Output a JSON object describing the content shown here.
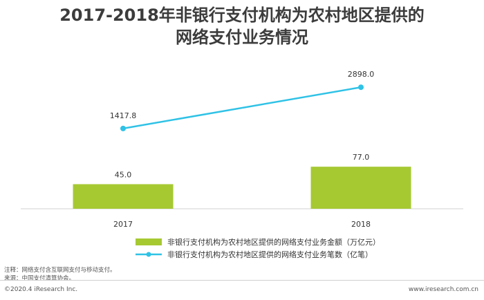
{
  "title_line1": "2017-2018年非银行支付机构为农村地区提供的",
  "title_line2": "网络支付业务情况",
  "chart_data": {
    "type": "bar",
    "categories": [
      "2017",
      "2018"
    ],
    "series": [
      {
        "name": "非银行支付机构为农村地区提供的网络支付业务金额（万亿元）",
        "type": "bar",
        "values": [
          45.0,
          77.0
        ],
        "labels": [
          "45.0",
          "77.0"
        ],
        "color": "#a6c932"
      },
      {
        "name": "非银行支付机构为农村地区提供的网络支付业务笔数（亿笔）",
        "type": "line",
        "values": [
          1417.8,
          2898.0
        ],
        "labels": [
          "1417.8",
          "2898.0"
        ],
        "color": "#2fc2e6"
      }
    ],
    "legend_position": "bottom-center",
    "grid": false
  },
  "notes": {
    "note1": "注释：网络支付含互联网支付与移动支付。",
    "note2": "来源：中国支付清算协会。"
  },
  "footer": {
    "copyright": "©2020.4 iResearch Inc.",
    "website": "www.iresearch.com.cn"
  }
}
